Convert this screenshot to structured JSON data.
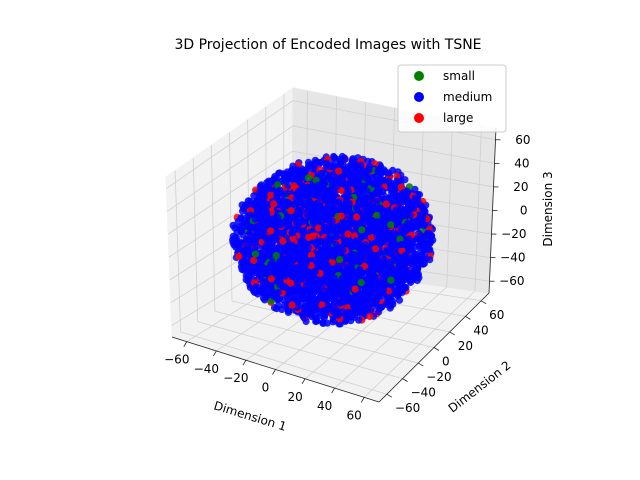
{
  "chart_data": {
    "type": "scatter",
    "dimensions": 3,
    "title": "3D Projection of Encoded Images with TSNE",
    "xlabel": "Dimension 1",
    "ylabel": "Dimension 2",
    "zlabel": "Dimension 3",
    "xlim": [
      -70,
      70
    ],
    "ylim": [
      -70,
      70
    ],
    "zlim": [
      -70,
      70
    ],
    "x_ticks": [
      -60,
      -40,
      -20,
      0,
      20,
      40,
      60
    ],
    "y_ticks": [
      -60,
      -40,
      -20,
      0,
      20,
      40,
      60
    ],
    "z_ticks": [
      -60,
      -40,
      -20,
      0,
      20,
      40,
      60
    ],
    "x_tick_labels": [
      "−60",
      "−40",
      "−20",
      "0",
      "20",
      "40",
      "60"
    ],
    "y_tick_labels": [
      "−60",
      "−40",
      "−20",
      "0",
      "20",
      "40",
      "60"
    ],
    "z_tick_labels": [
      "−60",
      "−40",
      "−20",
      "0",
      "20",
      "40",
      "60"
    ],
    "grid": true,
    "legend_position": "top-right",
    "distribution": "points fill an approximately spherical cloud centered at (0, 0, 0) with radius about 60",
    "series": [
      {
        "name": "small",
        "color": "#008000",
        "approx_count": 120
      },
      {
        "name": "medium",
        "color": "#0000ff",
        "approx_count": 4000
      },
      {
        "name": "large",
        "color": "#ff0000",
        "approx_count": 400
      }
    ]
  }
}
